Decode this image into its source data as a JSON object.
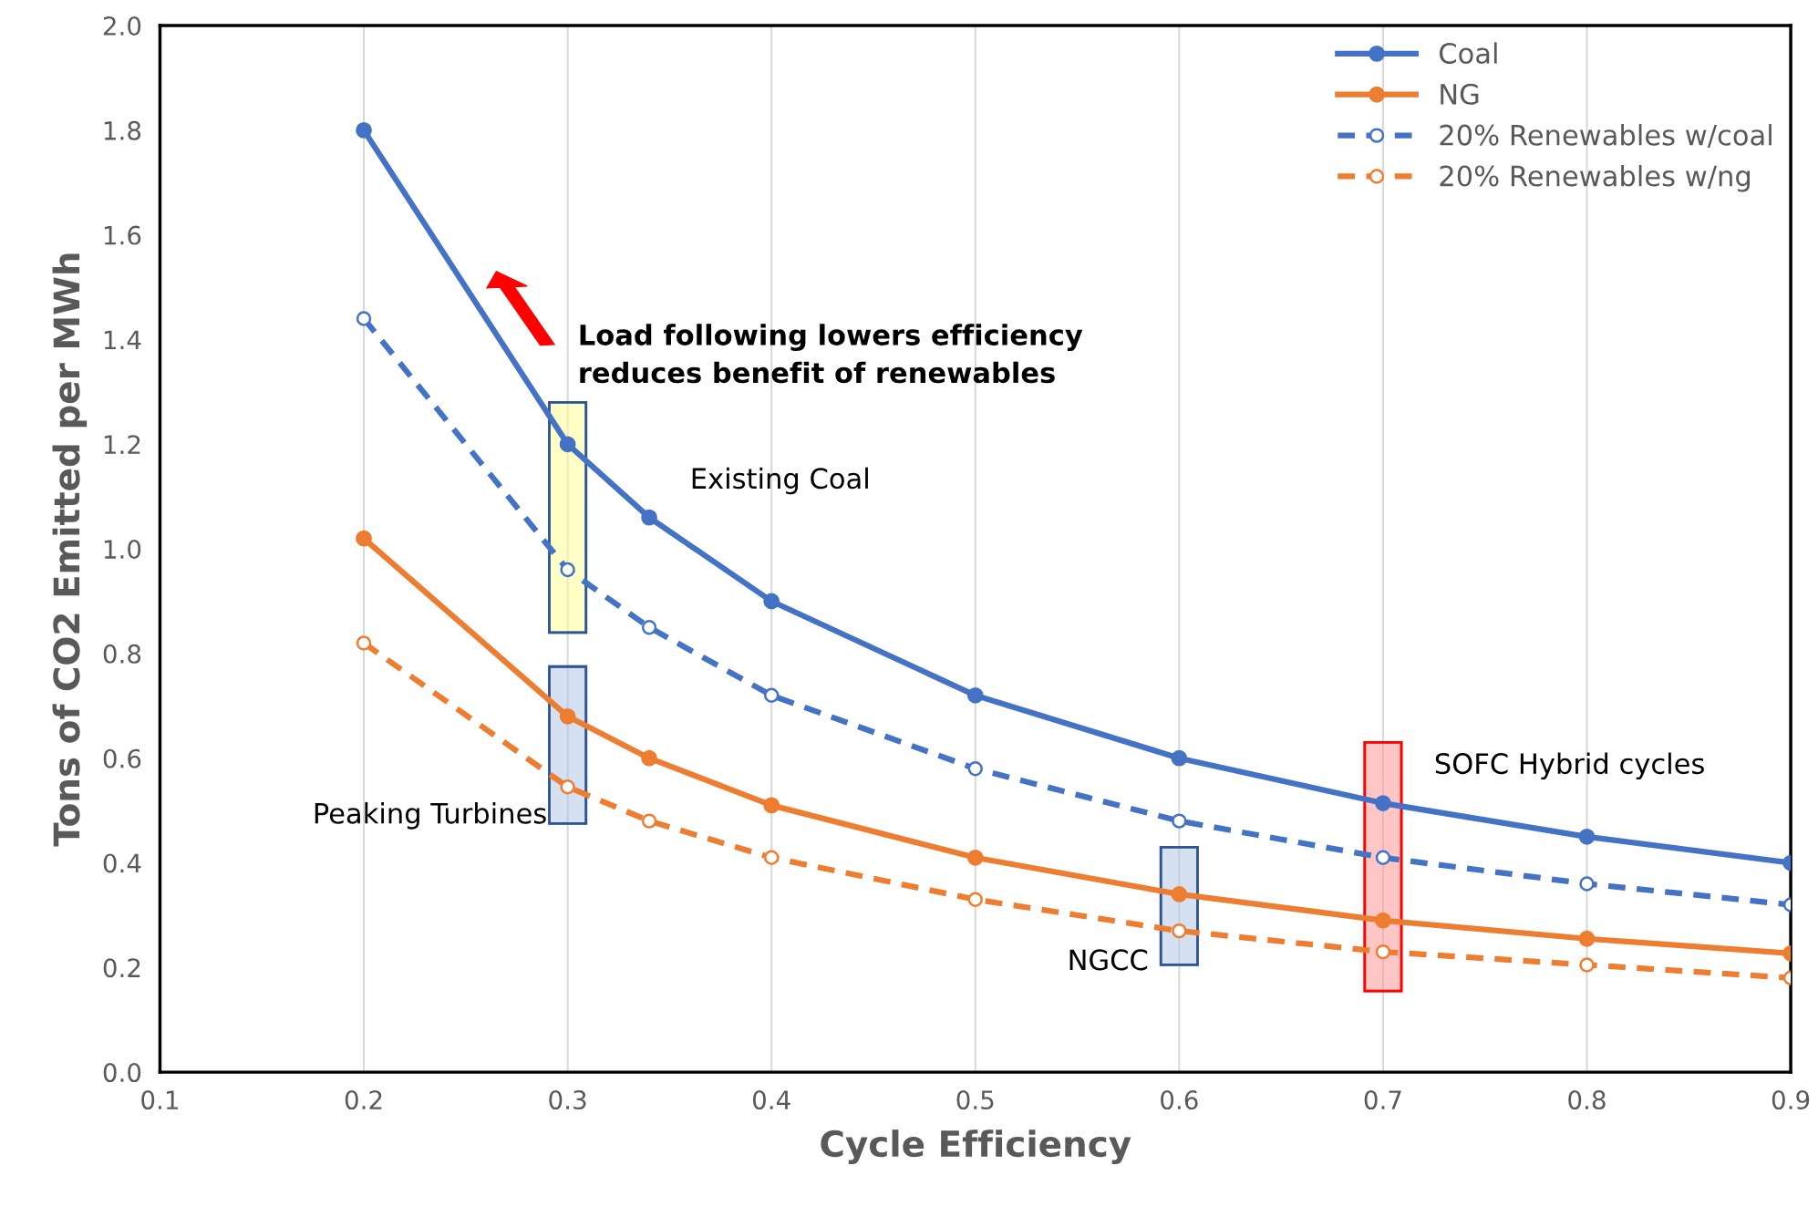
{
  "chart_data": {
    "type": "line",
    "xlabel": "Cycle Efficiency",
    "ylabel": "Tons of CO2 Emitted per MWh",
    "x": [
      0.2,
      0.3,
      0.34,
      0.4,
      0.5,
      0.6,
      0.7,
      0.8,
      0.9
    ],
    "series": [
      {
        "name": "Coal",
        "color": "#4472c4",
        "values": [
          1.8,
          1.2,
          1.06,
          0.9,
          0.72,
          0.6,
          0.514,
          0.45,
          0.4
        ],
        "line_style": "solid"
      },
      {
        "name": "NG",
        "color": "#ed7d31",
        "values": [
          1.02,
          0.68,
          0.6,
          0.51,
          0.41,
          0.34,
          0.29,
          0.255,
          0.227
        ],
        "line_style": "solid"
      },
      {
        "name": "20% Renewables w/coal",
        "color": "#4472c4",
        "values": [
          1.44,
          0.96,
          0.85,
          0.72,
          0.58,
          0.48,
          0.41,
          0.36,
          0.32
        ],
        "line_style": "dashed"
      },
      {
        "name": "20% Renewables w/ng",
        "color": "#ed7d31",
        "values": [
          0.82,
          0.545,
          0.48,
          0.41,
          0.33,
          0.27,
          0.23,
          0.205,
          0.18
        ],
        "line_style": "dashed"
      }
    ],
    "annotations": [
      "Load following lowers efficiency\nreduces benefit of renewables",
      "Existing Coal",
      "Peaking Turbines",
      "NGCC",
      "SOFC Hybrid cycles"
    ],
    "xlim": [
      0.1,
      0.9
    ],
    "xticks": [
      0.1,
      0.2,
      0.3,
      0.4,
      0.5,
      0.6,
      0.7,
      0.8,
      0.9
    ],
    "ylim": [
      0,
      2.0
    ],
    "yticks": [
      {
        "value": 0,
        "label": "0.0"
      },
      0.2,
      0.4,
      0.6,
      0.8,
      {
        "value": 1.0,
        "label": "1.0"
      },
      1.2,
      1.4,
      1.6,
      1.8,
      {
        "value": 2.0,
        "label": "2.0"
      }
    ],
    "grid": "x",
    "legend": "top right",
    "marker": "circle"
  }
}
